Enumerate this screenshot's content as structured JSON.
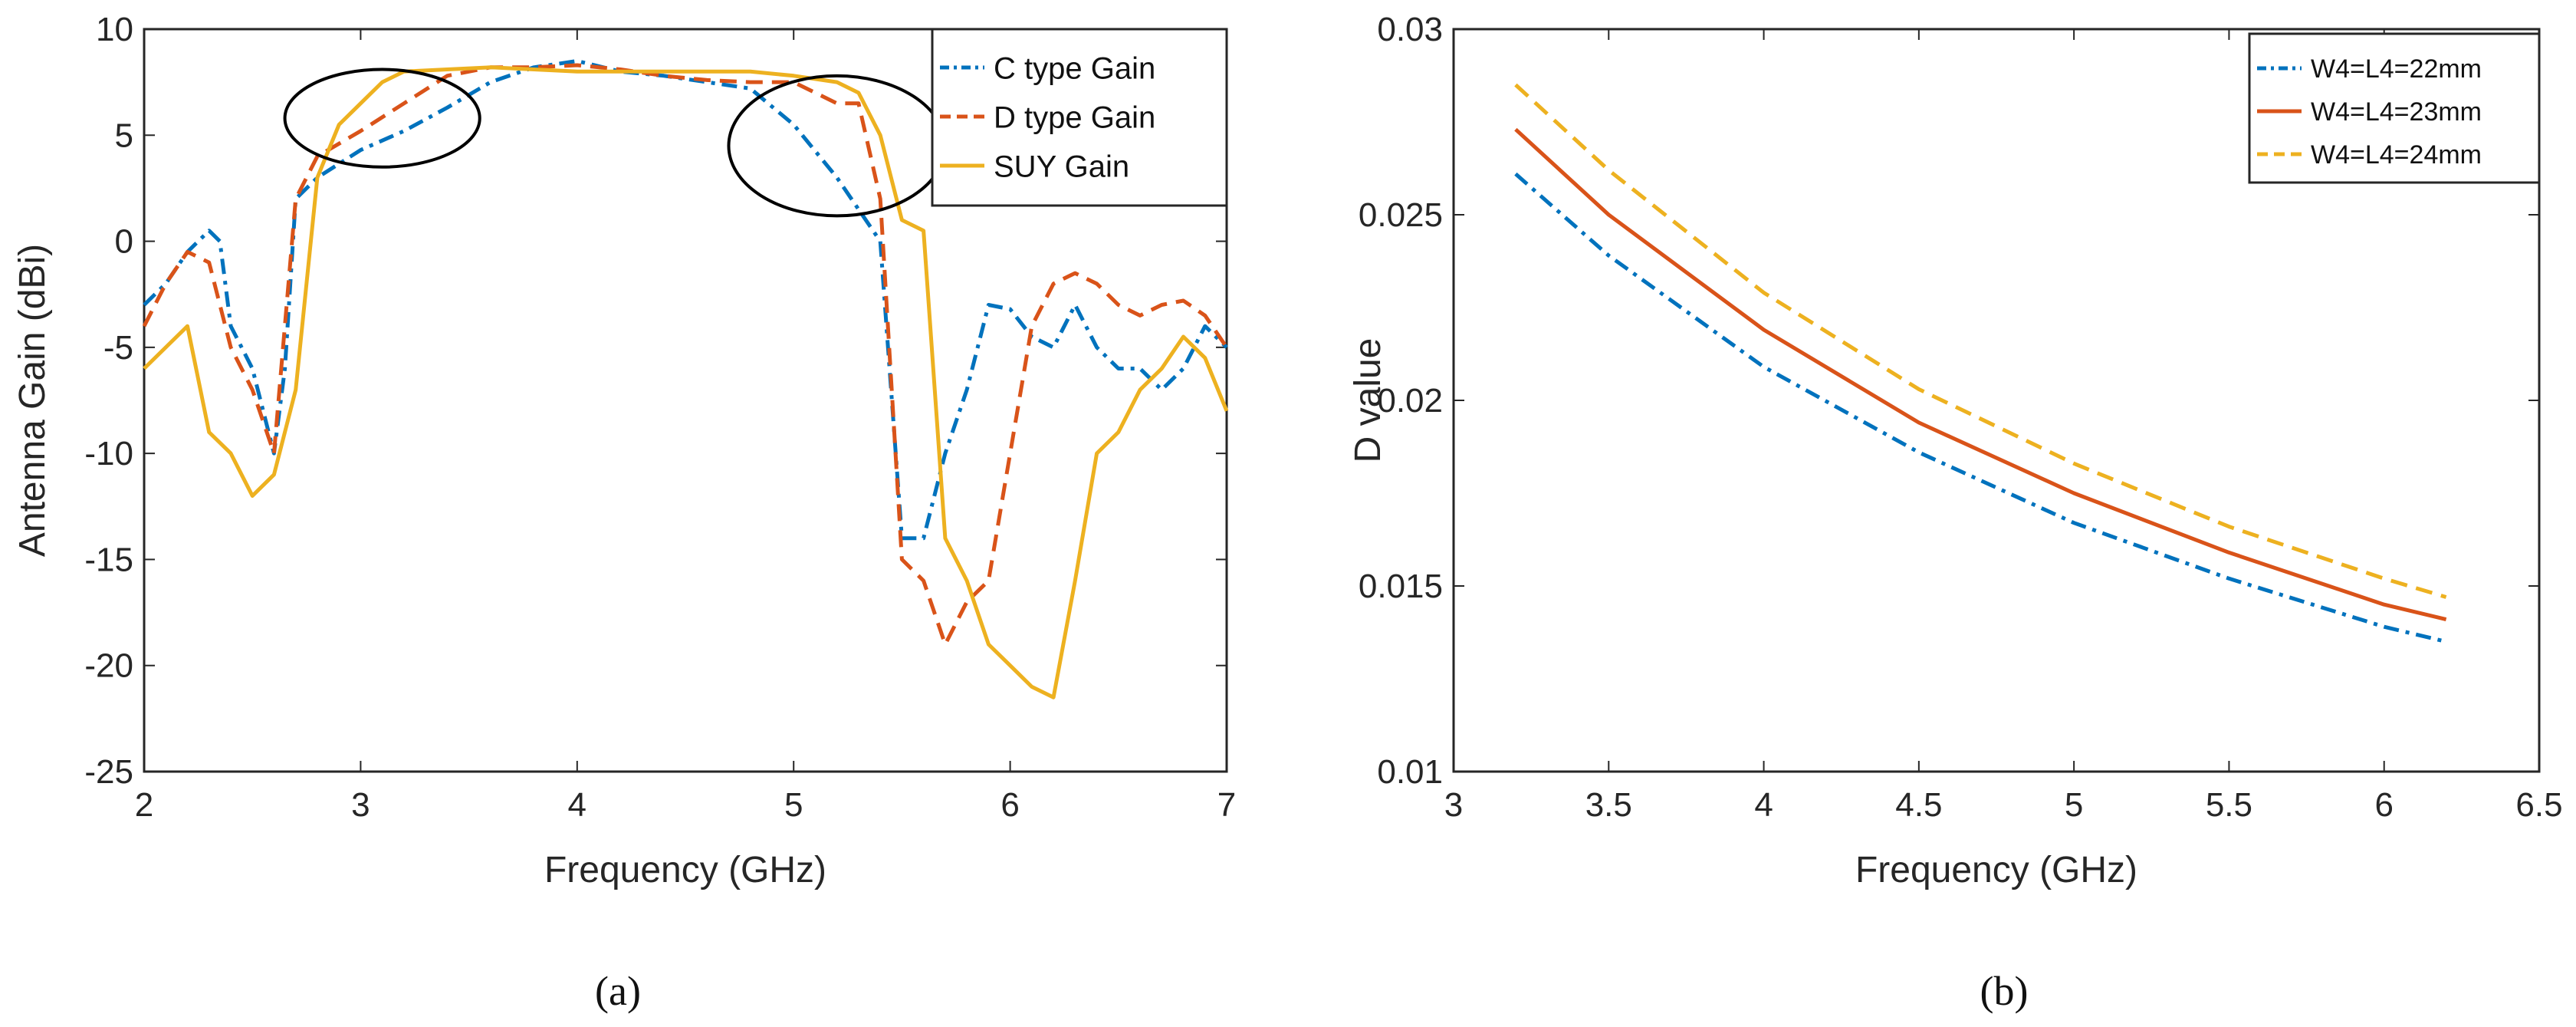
{
  "colors": {
    "blue": "#0072BD",
    "red": "#D95319",
    "orange": "#EDB120",
    "black": "#000000"
  },
  "chart_data": [
    {
      "type": "line",
      "caption": "(a)",
      "xlabel": "Frequency (GHz)",
      "ylabel": "Antenna Gain (dBi)",
      "xlim": [
        2,
        7
      ],
      "ylim": [
        -25,
        10
      ],
      "xticks": [
        2,
        3,
        4,
        5,
        6,
        7
      ],
      "yticks": [
        10,
        5,
        0,
        -5,
        -10,
        -15,
        -20,
        -25
      ],
      "grid": false,
      "legend": "top-right",
      "annotations": [
        {
          "type": "ellipse",
          "cx": 3.1,
          "cy": 5.8,
          "rx": 0.45,
          "ry": 2.3
        },
        {
          "type": "ellipse",
          "cx": 5.2,
          "cy": 4.5,
          "rx": 0.5,
          "ry": 3.3
        }
      ],
      "series": [
        {
          "name": "C type Gain",
          "style": "dashdot",
          "color": "#0072BD",
          "x": [
            2,
            2.1,
            2.2,
            2.3,
            2.35,
            2.4,
            2.5,
            2.6,
            2.65,
            2.7,
            2.8,
            3,
            3.2,
            3.4,
            3.6,
            3.8,
            4,
            4.2,
            4.4,
            4.6,
            4.8,
            5,
            5.2,
            5.4,
            5.5,
            5.6,
            5.7,
            5.8,
            5.9,
            6,
            6.1,
            6.2,
            6.3,
            6.4,
            6.5,
            6.6,
            6.7,
            6.8,
            6.9,
            7
          ],
          "y": [
            -3,
            -2,
            -0.5,
            0.5,
            0,
            -4,
            -6,
            -10,
            -6,
            2,
            3,
            4.3,
            5.2,
            6.3,
            7.5,
            8.2,
            8.5,
            8,
            7.8,
            7.5,
            7.2,
            5.5,
            3,
            0,
            -14,
            -14,
            -10,
            -7,
            -3,
            -3.2,
            -4.5,
            -5,
            -3,
            -5,
            -6,
            -6,
            -7,
            -6,
            -4,
            -5
          ]
        },
        {
          "name": "D type Gain",
          "style": "dashed",
          "color": "#D95319",
          "x": [
            2,
            2.1,
            2.2,
            2.3,
            2.4,
            2.5,
            2.6,
            2.7,
            2.8,
            3,
            3.2,
            3.4,
            3.6,
            3.8,
            4,
            4.2,
            4.4,
            4.6,
            4.8,
            5,
            5.2,
            5.3,
            5.4,
            5.5,
            5.6,
            5.7,
            5.8,
            5.9,
            6,
            6.1,
            6.2,
            6.3,
            6.4,
            6.5,
            6.6,
            6.7,
            6.8,
            6.9,
            7
          ],
          "y": [
            -4,
            -2,
            -0.5,
            -1,
            -5,
            -7,
            -10,
            2,
            4,
            5.2,
            6.5,
            7.8,
            8.2,
            8.2,
            8.3,
            8.1,
            7.8,
            7.6,
            7.5,
            7.5,
            6.5,
            6.5,
            2,
            -15,
            -16,
            -19,
            -17,
            -16,
            -10,
            -4,
            -2,
            -1.5,
            -2,
            -3,
            -3.5,
            -3,
            -2.8,
            -3.5,
            -5
          ]
        },
        {
          "name": "SUY  Gain",
          "style": "solid",
          "color": "#EDB120",
          "x": [
            2,
            2.1,
            2.2,
            2.3,
            2.4,
            2.5,
            2.6,
            2.7,
            2.8,
            2.9,
            3,
            3.1,
            3.2,
            3.4,
            3.6,
            3.8,
            4,
            4.2,
            4.4,
            4.6,
            4.8,
            5,
            5.2,
            5.3,
            5.4,
            5.5,
            5.6,
            5.7,
            5.8,
            5.9,
            6,
            6.1,
            6.2,
            6.3,
            6.4,
            6.5,
            6.6,
            6.7,
            6.8,
            6.9,
            7
          ],
          "y": [
            -6,
            -5,
            -4,
            -9,
            -10,
            -12,
            -11,
            -7,
            3,
            5.5,
            6.5,
            7.5,
            8,
            8.1,
            8.2,
            8.1,
            8,
            8,
            8,
            8,
            8,
            7.8,
            7.5,
            7,
            5,
            1,
            0.5,
            -14,
            -16,
            -19,
            -20,
            -21,
            -21.5,
            -16,
            -10,
            -9,
            -7,
            -6,
            -4.5,
            -5.5,
            -8
          ]
        }
      ]
    },
    {
      "type": "line",
      "caption": "(b)",
      "xlabel": "Frequency (GHz)",
      "ylabel": "D value",
      "xlim": [
        3,
        6.5
      ],
      "ylim": [
        0.01,
        0.03
      ],
      "xticks": [
        3,
        3.5,
        4,
        4.5,
        5,
        5.5,
        6,
        6.5
      ],
      "yticks": [
        0.03,
        0.025,
        0.02,
        0.015,
        0.01
      ],
      "grid": false,
      "legend": "top-right",
      "series": [
        {
          "name": "W4=L4=22mm",
          "style": "dashdot",
          "color": "#0072BD",
          "x": [
            3.2,
            3.5,
            4,
            4.5,
            5,
            5.5,
            6,
            6.2
          ],
          "y": [
            0.0261,
            0.0239,
            0.0209,
            0.0186,
            0.0167,
            0.0152,
            0.0139,
            0.0135
          ]
        },
        {
          "name": "W4=L4=23mm",
          "style": "solid",
          "color": "#D95319",
          "x": [
            3.2,
            3.5,
            4,
            4.5,
            5,
            5.5,
            6,
            6.2
          ],
          "y": [
            0.0273,
            0.025,
            0.0219,
            0.0194,
            0.0175,
            0.0159,
            0.0145,
            0.0141
          ]
        },
        {
          "name": "W4=L4=24mm",
          "style": "dashed",
          "color": "#EDB120",
          "x": [
            3.2,
            3.5,
            4,
            4.5,
            5,
            5.5,
            6,
            6.2
          ],
          "y": [
            0.0285,
            0.0262,
            0.0229,
            0.0203,
            0.0183,
            0.0166,
            0.0152,
            0.0147
          ]
        }
      ]
    }
  ]
}
